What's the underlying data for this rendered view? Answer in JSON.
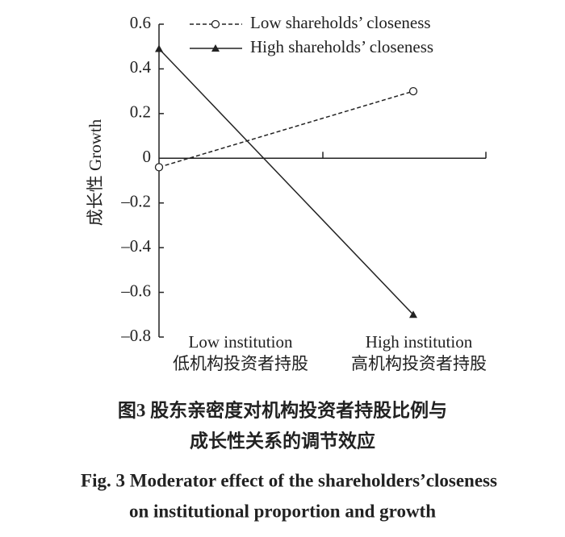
{
  "chart_data": {
    "type": "line",
    "y_label": "成长性 Growth",
    "categories": [
      [
        "Low institution",
        "低机构投资者持股"
      ],
      [
        "High institution",
        "高机构投资者持股"
      ]
    ],
    "series": [
      {
        "name": "Low shareholds’ closeness",
        "color": "#222222",
        "dash": true,
        "marker": "circle",
        "values": [
          -0.04,
          0.3
        ]
      },
      {
        "name": "High shareholds’ closeness",
        "color": "#222222",
        "dash": false,
        "marker": "triangle",
        "values": [
          0.49,
          -0.7
        ]
      }
    ],
    "ylim": [
      -0.8,
      0.6
    ],
    "yticks": [
      {
        "value": -0.8,
        "label": "–0.8"
      },
      {
        "value": -0.6,
        "label": "–0.6"
      },
      {
        "value": -0.4,
        "label": "–0.4"
      },
      {
        "value": -0.2,
        "label": "–0.2"
      },
      0,
      0.2,
      0.4,
      0.6
    ],
    "caption": [
      "图3  股东亲密度对机构投资者持股比例与",
      "成长性关系的调节效应",
      "Fig. 3   Moderator effect of the shareholders’closeness",
      "on institutional proportion and growth"
    ]
  }
}
